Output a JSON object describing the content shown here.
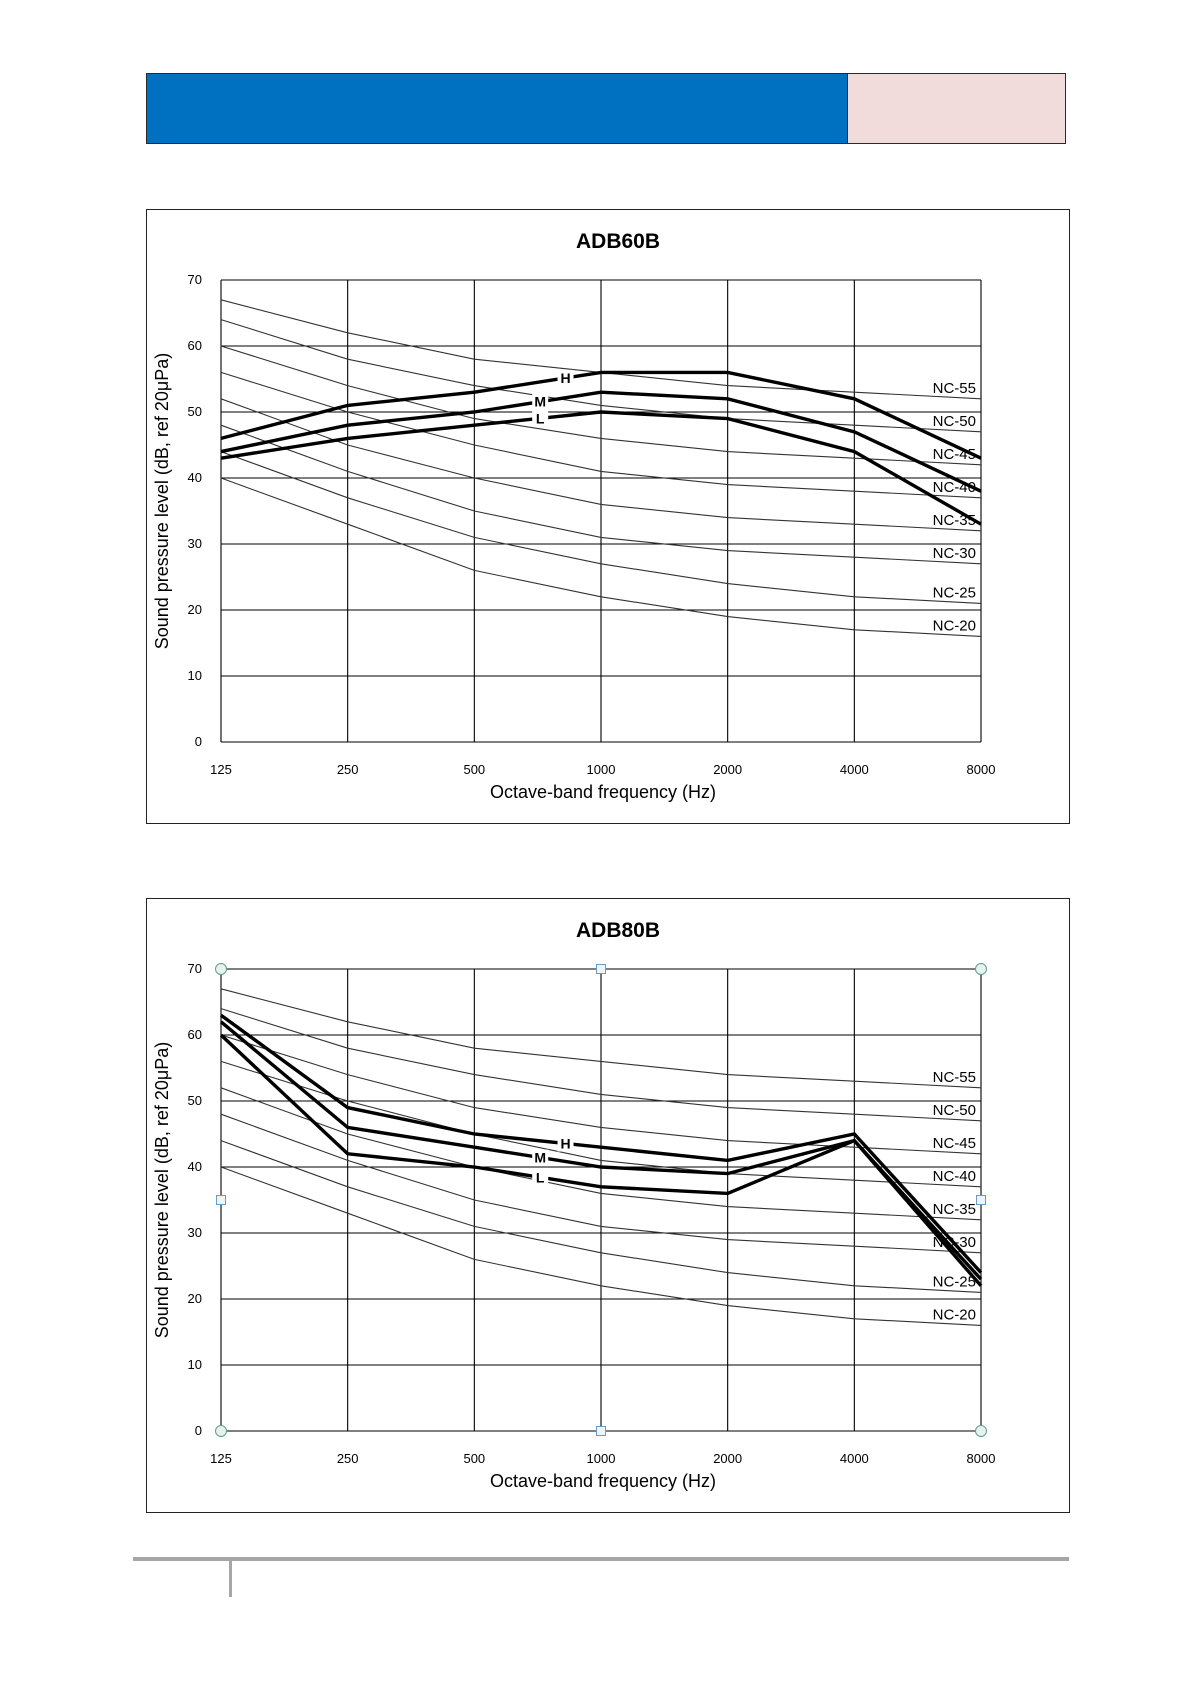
{
  "page": {
    "header": {
      "colors": {
        "left": "#0070c0",
        "right": "#f2dcdb"
      }
    }
  },
  "chart_data": [
    {
      "type": "line",
      "title": "ADB60B",
      "xlabel": "Octave-band  frequency  (Hz)",
      "ylabel": "Sound  pressure  level  (dB,  ref  20μPa)",
      "categories": [
        "125",
        "250",
        "500",
        "1000",
        "2000",
        "4000",
        "8000"
      ],
      "ylim": [
        0,
        70
      ],
      "yticks": [
        0,
        10,
        20,
        30,
        40,
        50,
        60,
        70
      ],
      "grid": true,
      "selection_handles": false,
      "nc_curves": [
        {
          "name": "NC-55",
          "values": [
            67,
            62,
            58,
            56,
            54,
            53,
            52
          ]
        },
        {
          "name": "NC-50",
          "values": [
            64,
            58,
            54,
            51,
            49,
            48,
            47
          ]
        },
        {
          "name": "NC-45",
          "values": [
            60,
            54,
            49,
            46,
            44,
            43,
            42
          ]
        },
        {
          "name": "NC-40",
          "values": [
            56,
            50,
            45,
            41,
            39,
            38,
            37
          ]
        },
        {
          "name": "NC-35",
          "values": [
            52,
            45,
            40,
            36,
            34,
            33,
            32
          ]
        },
        {
          "name": "NC-30",
          "values": [
            48,
            41,
            35,
            31,
            29,
            28,
            27
          ]
        },
        {
          "name": "NC-25",
          "values": [
            44,
            37,
            31,
            27,
            24,
            22,
            21
          ]
        },
        {
          "name": "NC-20",
          "values": [
            40,
            33,
            26,
            22,
            19,
            17,
            16
          ]
        }
      ],
      "series": [
        {
          "name": "H",
          "values": [
            46,
            51,
            53,
            56,
            56,
            52,
            43
          ]
        },
        {
          "name": "M",
          "values": [
            44,
            48,
            50,
            53,
            52,
            47,
            38
          ]
        },
        {
          "name": "L",
          "values": [
            43,
            46,
            48,
            50,
            49,
            44,
            33
          ]
        }
      ]
    },
    {
      "type": "line",
      "title": "ADB80B",
      "xlabel": "Octave-band  frequency  (Hz)",
      "ylabel": "Sound  pressure  level  (dB,  ref  20μPa)",
      "categories": [
        "125",
        "250",
        "500",
        "1000",
        "2000",
        "4000",
        "8000"
      ],
      "ylim": [
        0,
        70
      ],
      "yticks": [
        0,
        10,
        20,
        30,
        40,
        50,
        60,
        70
      ],
      "grid": true,
      "selection_handles": true,
      "nc_curves": [
        {
          "name": "NC-55",
          "values": [
            67,
            62,
            58,
            56,
            54,
            53,
            52
          ]
        },
        {
          "name": "NC-50",
          "values": [
            64,
            58,
            54,
            51,
            49,
            48,
            47
          ]
        },
        {
          "name": "NC-45",
          "values": [
            60,
            54,
            49,
            46,
            44,
            43,
            42
          ]
        },
        {
          "name": "NC-40",
          "values": [
            56,
            50,
            45,
            41,
            39,
            38,
            37
          ]
        },
        {
          "name": "NC-35",
          "values": [
            52,
            45,
            40,
            36,
            34,
            33,
            32
          ]
        },
        {
          "name": "NC-30",
          "values": [
            48,
            41,
            35,
            31,
            29,
            28,
            27
          ]
        },
        {
          "name": "NC-25",
          "values": [
            44,
            37,
            31,
            27,
            24,
            22,
            21
          ]
        },
        {
          "name": "NC-20",
          "values": [
            40,
            33,
            26,
            22,
            19,
            17,
            16
          ]
        }
      ],
      "series": [
        {
          "name": "H",
          "values": [
            63,
            49,
            45,
            43,
            41,
            45,
            24
          ]
        },
        {
          "name": "M",
          "values": [
            62,
            46,
            43,
            40,
            39,
            44,
            23
          ]
        },
        {
          "name": "L",
          "values": [
            60,
            42,
            40,
            37,
            36,
            44,
            22
          ]
        }
      ]
    }
  ]
}
